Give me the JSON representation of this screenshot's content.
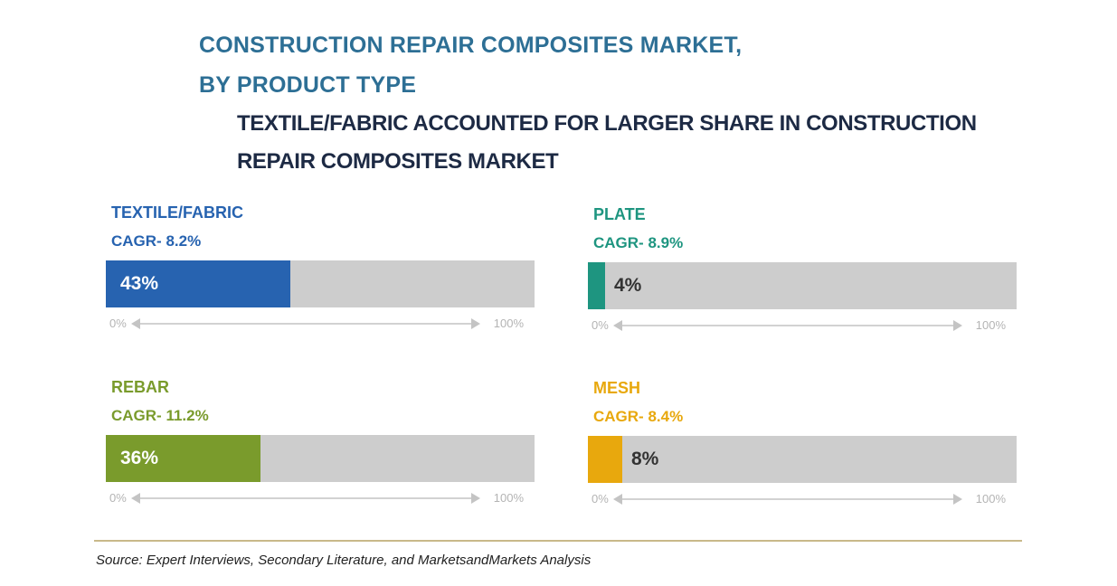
{
  "title_line1": "CONSTRUCTION REPAIR COMPOSITES MARKET,",
  "title_line2": "BY PRODUCT TYPE",
  "subtitle_line1": "TEXTILE/FABRIC ACCOUNTED FOR LARGER SHARE IN CONSTRUCTION",
  "subtitle_line2": "REPAIR COMPOSITES MARKET",
  "axis": {
    "min_label": "0%",
    "max_label": "100%"
  },
  "source": "Source: Expert Interviews, Secondary Literature, and MarketsandMarkets Analysis",
  "chart_data": {
    "type": "bar",
    "categories": [
      "TEXTILE/FABRIC",
      "PLATE",
      "REBAR",
      "MESH"
    ],
    "values": [
      43,
      4,
      36,
      8
    ],
    "value_labels": [
      "43%",
      "4%",
      "36%",
      "8%"
    ],
    "cagr_labels": [
      "CAGR- 8.2%",
      "CAGR- 8.9%",
      "CAGR- 11.2%",
      "CAGR- 8.4%"
    ],
    "colors": [
      "#2763b0",
      "#1e9580",
      "#7a9b2c",
      "#e8a80d"
    ],
    "label_text_colors": [
      "#ffffff",
      "#333333",
      "#ffffff",
      "#333333"
    ],
    "track_color": "#cdcdcd",
    "ylim": [
      0,
      100
    ]
  }
}
